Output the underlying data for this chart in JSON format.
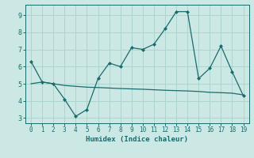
{
  "x": [
    0,
    1,
    2,
    3,
    4,
    5,
    6,
    7,
    8,
    9,
    10,
    11,
    12,
    13,
    14,
    15,
    16,
    17,
    18,
    19
  ],
  "line1": [
    6.3,
    5.1,
    5.0,
    4.1,
    3.1,
    3.5,
    5.3,
    6.2,
    6.0,
    7.1,
    7.0,
    7.3,
    8.2,
    9.2,
    9.2,
    5.3,
    5.9,
    7.2,
    5.7,
    4.3
  ],
  "line2": [
    5.0,
    5.1,
    5.0,
    4.9,
    4.85,
    4.8,
    4.78,
    4.75,
    4.72,
    4.7,
    4.68,
    4.65,
    4.62,
    4.6,
    4.58,
    4.55,
    4.5,
    4.48,
    4.45,
    4.35
  ],
  "line_color": "#1a6b6b",
  "bg_color": "#cce8e4",
  "grid_color": "#add4cf",
  "xlabel": "Humidex (Indice chaleur)",
  "ylim": [
    2.7,
    9.6
  ],
  "xlim": [
    -0.5,
    19.5
  ],
  "yticks": [
    3,
    4,
    5,
    6,
    7,
    8,
    9
  ],
  "xticks": [
    0,
    1,
    2,
    3,
    4,
    5,
    6,
    7,
    8,
    9,
    10,
    11,
    12,
    13,
    14,
    15,
    16,
    17,
    18,
    19
  ]
}
